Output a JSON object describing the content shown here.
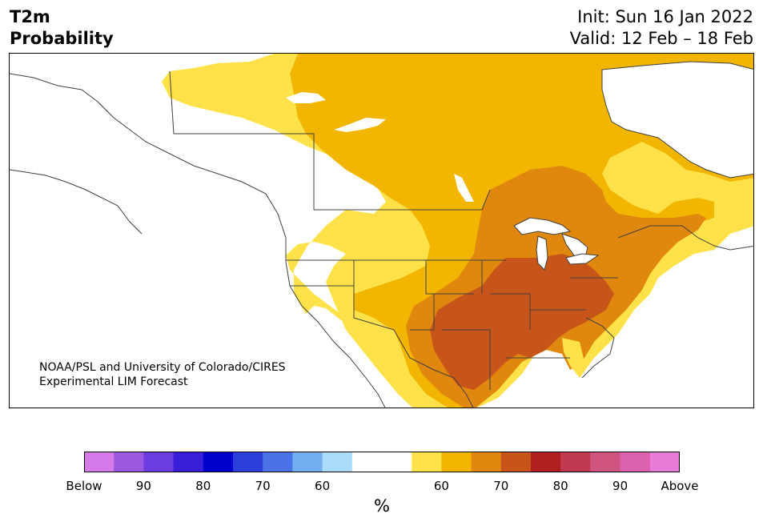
{
  "header": {
    "title_line1": "T2m",
    "title_line2": "Probability",
    "init": "Init: Sun 16 Jan 2022",
    "valid": "Valid: 12 Feb – 18 Feb"
  },
  "credit": {
    "line1": "NOAA/PSL and University of Colorado/CIRES",
    "line2": "Experimental LIM Forecast"
  },
  "colorbar": {
    "unit": "%",
    "colors": [
      "#d57ae8",
      "#9b59e0",
      "#6a3de0",
      "#3a1fd8",
      "#0000cc",
      "#2a3fd9",
      "#4a73e8",
      "#72aef0",
      "#aadcf8",
      "#ffffff",
      "#ffffff",
      "#ffe24a",
      "#f2b600",
      "#e0870e",
      "#c75418",
      "#b02020",
      "#c23a52",
      "#d05480",
      "#dc62b0",
      "#e87ad8"
    ],
    "tick_labels": [
      "Below",
      "90",
      "80",
      "70",
      "60",
      "",
      "60",
      "70",
      "80",
      "90",
      "Above"
    ],
    "legend_categories": [
      "Below",
      "Above"
    ]
  },
  "map": {
    "region": "North America",
    "colors": {
      "above_55": "#ffe24a",
      "above_60": "#f2b600",
      "above_65": "#e0870e",
      "above_70": "#c75418",
      "lake": "#ffffff",
      "border": "#404040"
    }
  }
}
